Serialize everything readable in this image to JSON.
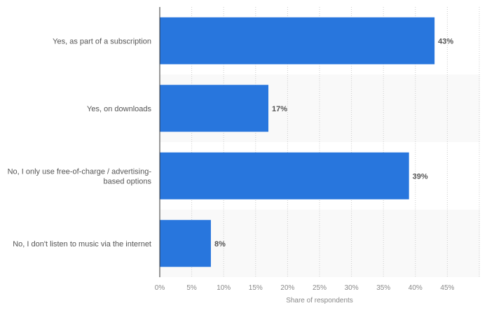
{
  "chart_data": {
    "type": "bar",
    "orientation": "horizontal",
    "categories": [
      "Yes, as part of a subscription",
      "Yes, on downloads",
      "No, I only use free-of-charge / advertising-based options",
      "No, I don't listen to music via the internet"
    ],
    "category_lines": [
      [
        "Yes, as part of a subscription"
      ],
      [
        "Yes, on downloads"
      ],
      [
        "No, I only use free-of-charge / advertising-",
        "based options"
      ],
      [
        "No, I don't listen to music via the internet"
      ]
    ],
    "values": [
      43,
      17,
      39,
      8
    ],
    "value_labels": [
      "43%",
      "17%",
      "39%",
      "8%"
    ],
    "xticks": [
      0,
      5,
      10,
      15,
      20,
      25,
      30,
      35,
      40,
      45
    ],
    "xtick_labels": [
      "0%",
      "5%",
      "10%",
      "15%",
      "20%",
      "25%",
      "30%",
      "35%",
      "40%",
      "45%"
    ],
    "xlim": [
      0,
      50
    ],
    "xlabel": "Share of respondents",
    "ylabel": "",
    "grid": "vertical-dotted",
    "bar_color": "#2876dd",
    "band_color": "#f9f9f9"
  }
}
